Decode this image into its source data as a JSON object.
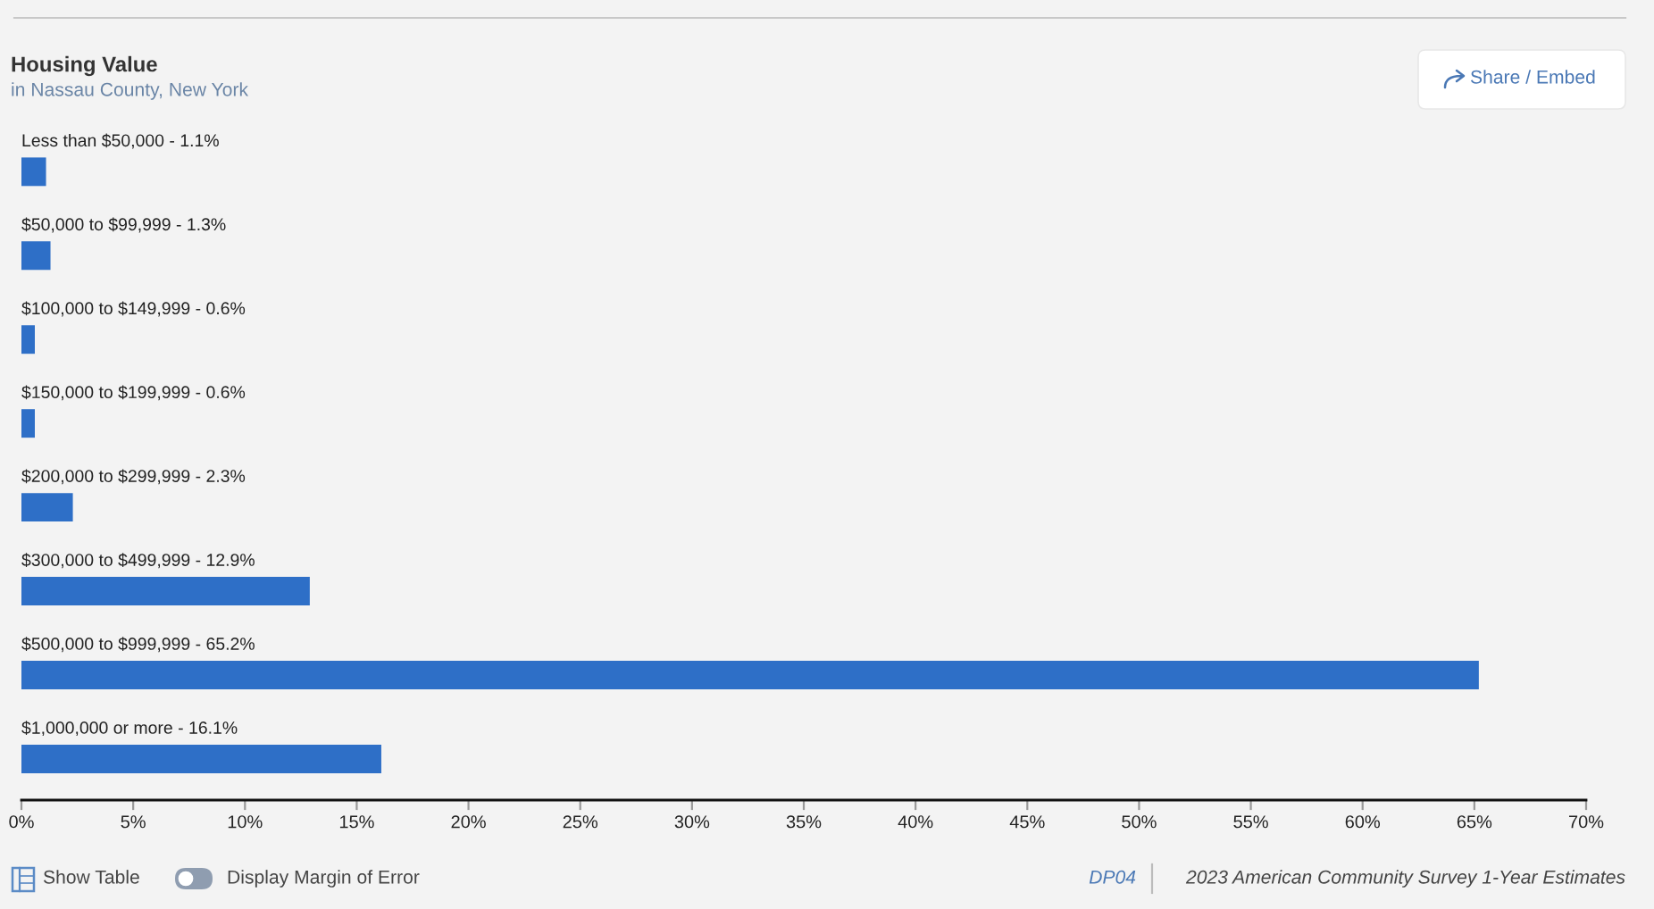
{
  "chart_data": {
    "type": "bar",
    "orientation": "horizontal",
    "title": "Housing Value",
    "subtitle": "in Nassau County, New York",
    "categories": [
      "Less than $50,000 -",
      "$50,000 to $99,999 -",
      "$100,000 to $149,999 -",
      "$150,000 to $199,999 -",
      "$200,000 to $299,999 -",
      "$300,000 to $499,999 -",
      "$500,000 to $999,999 -",
      "$1,000,000 or more -"
    ],
    "values": [
      1.1,
      1.3,
      0.6,
      0.6,
      2.3,
      12.9,
      65.2,
      16.1
    ],
    "value_labels": [
      "1.1%",
      "1.3%",
      "0.6%",
      "0.6%",
      "2.3%",
      "12.9%",
      "65.2%",
      "16.1%"
    ],
    "color": "#2e6fc7",
    "xlim": [
      0,
      70
    ],
    "xticks": [
      {
        "value": 0,
        "label": "0%"
      },
      {
        "value": 5,
        "label": "5%"
      },
      {
        "value": 10,
        "label": "10%"
      },
      {
        "value": 15,
        "label": "15%"
      },
      {
        "value": 20,
        "label": "20%"
      },
      {
        "value": 25,
        "label": "25%"
      },
      {
        "value": 30,
        "label": "30%"
      },
      {
        "value": 35,
        "label": "35%"
      },
      {
        "value": 40,
        "label": "40%"
      },
      {
        "value": 45,
        "label": "45%"
      },
      {
        "value": 50,
        "label": "50%"
      },
      {
        "value": 55,
        "label": "55%"
      },
      {
        "value": 60,
        "label": "60%"
      },
      {
        "value": 65,
        "label": "65%"
      },
      {
        "value": 70,
        "label": "70%"
      }
    ],
    "annotations": [
      "Share / Embed",
      "Show Table",
      "Display Margin of Error",
      "DP04",
      "2023 American Community Survey 1-Year Estimates"
    ]
  }
}
